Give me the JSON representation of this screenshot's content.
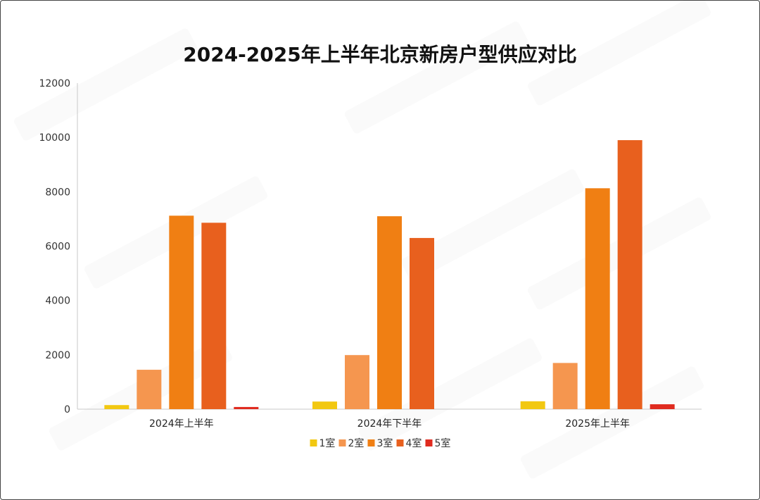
{
  "chart_data": {
    "type": "bar",
    "title": "2024-2025年上半年北京新房户型供应对比",
    "categories": [
      "2024年上半年",
      "2024年下半年",
      "2025年上半年"
    ],
    "series": [
      {
        "name": "1室",
        "color": "#F2C811",
        "values": [
          150,
          280,
          290
        ]
      },
      {
        "name": "2室",
        "color": "#F5964F",
        "values": [
          1450,
          1990,
          1700
        ]
      },
      {
        "name": "3室",
        "color": "#F07F13",
        "values": [
          7120,
          7100,
          8130
        ]
      },
      {
        "name": "4室",
        "color": "#E8601E",
        "values": [
          6860,
          6300,
          9900
        ]
      },
      {
        "name": "5室",
        "color": "#E02B1F",
        "values": [
          80,
          0,
          180
        ]
      }
    ],
    "ylim": [
      0,
      12000
    ],
    "yticks": [
      "0",
      "2000",
      "4000",
      "6000",
      "8000",
      "10000",
      "12000"
    ],
    "grid": false,
    "legend": "bottom"
  }
}
